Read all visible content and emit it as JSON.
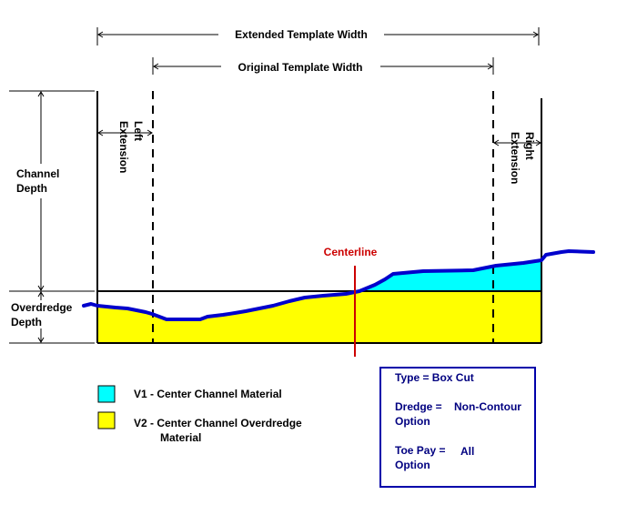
{
  "labels": {
    "extended_template_width": "Extended Template Width",
    "original_template_width": "Original Template Width",
    "left_extension": [
      "Left",
      "Extension"
    ],
    "right_extension": [
      "Right",
      "Extension"
    ],
    "channel_depth": [
      "Channel",
      "Depth"
    ],
    "overdredge_depth": [
      "Overdredge",
      "Depth"
    ],
    "centerline": "Centerline"
  },
  "legend": {
    "v1": {
      "label": "V1 - Center Channel Material",
      "color": "#00ffff"
    },
    "v2": {
      "label_line1": "V2 - Center Channel Overdredge",
      "label_line2": "Material",
      "color": "#ffff00"
    }
  },
  "info_box": {
    "type": "Type = Box Cut",
    "dredge_key": "Dredge =",
    "dredge_value": "Non-Contour",
    "dredge_option": "Option",
    "toe_key": "Toe Pay =",
    "toe_value": "All",
    "toe_option": "Option",
    "border_color": "#0000aa",
    "text_color": "#000080"
  },
  "colors": {
    "profile": "#0000cc",
    "centerline": "#cc0000",
    "v1_fill": "#00ffff",
    "v2_fill": "#ffff00"
  }
}
